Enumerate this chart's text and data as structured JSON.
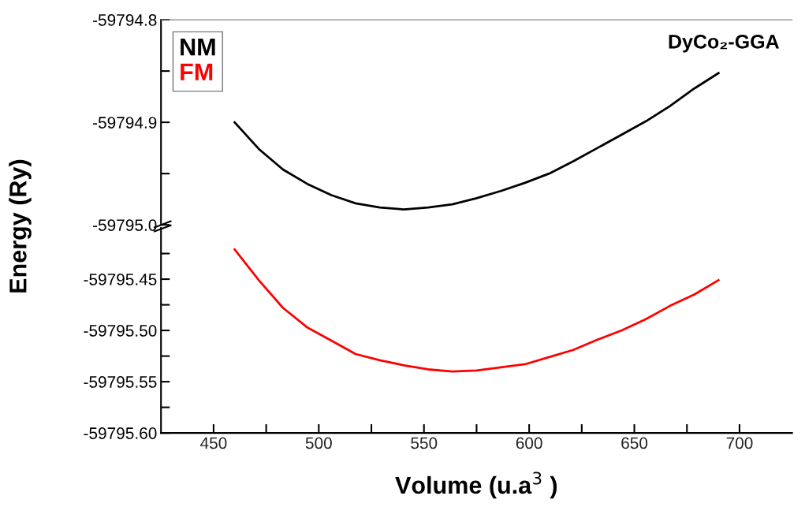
{
  "chart_data": [
    {
      "type": "line",
      "ylabel": "Energy (Ry)",
      "annotations": [
        "DyCo₂-GGA"
      ],
      "legend": "top left",
      "grid": false,
      "tick_labels": "y",
      "marker": "none",
      "line_style": "solid",
      "x": [
        460,
        471.5,
        483,
        494.5,
        506,
        517.5,
        529,
        540.5,
        552,
        563.5,
        575,
        586.5,
        598,
        609.5,
        621,
        632.5,
        644,
        655.5,
        667,
        678.5,
        690
      ],
      "xlim": [
        425,
        725
      ],
      "ylim": [
        -59795.0,
        -59794.8
      ],
      "yticks": [
        {
          "value": -59795.0,
          "label": "-59795.0"
        },
        {
          "value": -59794.95,
          "label": null
        },
        -59794.9,
        {
          "value": -59794.85,
          "label": null
        },
        -59794.8
      ],
      "series": [
        {
          "name": "NM",
          "color": "#000000",
          "values": [
            -59794.9,
            -59794.926,
            -59794.946,
            -59794.96,
            -59794.971,
            -59794.979,
            -59794.983,
            -59794.985,
            -59794.983,
            -59794.98,
            -59794.974,
            -59794.967,
            -59794.959,
            -59794.95,
            -59794.938,
            -59794.925,
            -59794.912,
            -59794.899,
            -59794.884,
            -59794.867,
            -59794.852
          ]
        },
        {
          "name": "FM",
          "color": "#ff0000",
          "values": [
            null,
            null,
            null,
            null,
            null,
            null,
            null,
            null,
            null,
            null,
            null,
            null,
            null,
            null,
            null,
            null,
            null,
            null,
            null,
            null,
            null
          ]
        }
      ]
    },
    {
      "type": "line",
      "xlabel": "Volume (u.a$^{3}$ )",
      "grid": false,
      "marker": "none",
      "line_style": "solid",
      "x": [
        460,
        471.5,
        483,
        494.5,
        506,
        517.5,
        529,
        540.5,
        552,
        563.5,
        575,
        586.5,
        598,
        609.5,
        621,
        632.5,
        644,
        655.5,
        667,
        678.5,
        690
      ],
      "xlim": [
        425,
        725
      ],
      "xticks": [
        450,
        {
          "value": 475,
          "label": null
        },
        500,
        {
          "value": 525,
          "label": null
        },
        550,
        {
          "value": 575,
          "label": null
        },
        600,
        {
          "value": 625,
          "label": null
        },
        650,
        {
          "value": 675,
          "label": null
        },
        700
      ],
      "ylim": [
        -59795.6,
        -59795.4
      ],
      "yticks": [
        {
          "value": -59795.6,
          "label": "-59795.60"
        },
        {
          "value": -59795.575,
          "label": null
        },
        {
          "value": -59795.55,
          "label": "-59795.55"
        },
        {
          "value": -59795.525,
          "label": null
        },
        {
          "value": -59795.5,
          "label": "-59795.50"
        },
        {
          "value": -59795.475,
          "label": null
        },
        {
          "value": -59795.45,
          "label": "-59795.45"
        },
        {
          "value": -59795.425,
          "label": null
        }
      ],
      "series": [
        {
          "color": "#ff0000",
          "values": [
            -59795.421,
            -59795.451,
            -59795.478,
            -59795.497,
            -59795.51,
            -59795.523,
            -59795.529,
            -59795.534,
            -59795.538,
            -59795.54,
            -59795.539,
            -59795.536,
            -59795.533,
            -59795.526,
            -59795.519,
            -59795.509,
            -59795.5,
            -59795.489,
            -59795.476,
            -59795.465,
            -59795.451
          ]
        }
      ]
    }
  ]
}
